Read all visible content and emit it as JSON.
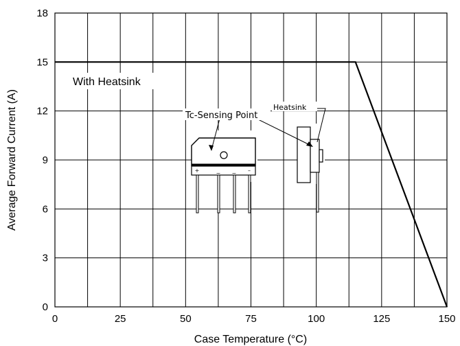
{
  "chart_data": {
    "type": "line",
    "xlabel": "Case Temperature (°C)",
    "ylabel": "Average Forward Current (A)",
    "xlim": [
      0,
      150
    ],
    "ylim": [
      0,
      18
    ],
    "x_ticks": [
      0,
      25,
      50,
      75,
      100,
      125,
      150
    ],
    "y_ticks": [
      0,
      3,
      6,
      9,
      12,
      15,
      18
    ],
    "grid": true,
    "series": [
      {
        "x": [
          0,
          115,
          150
        ],
        "y": [
          15,
          15,
          0
        ]
      }
    ],
    "annotations": {
      "curve_label": "With Heatsink",
      "sensing_point": "Tc-Sensing Point",
      "heatsink": "Heatsink",
      "pin_marks": [
        "+",
        "~",
        "~",
        "–"
      ]
    }
  }
}
